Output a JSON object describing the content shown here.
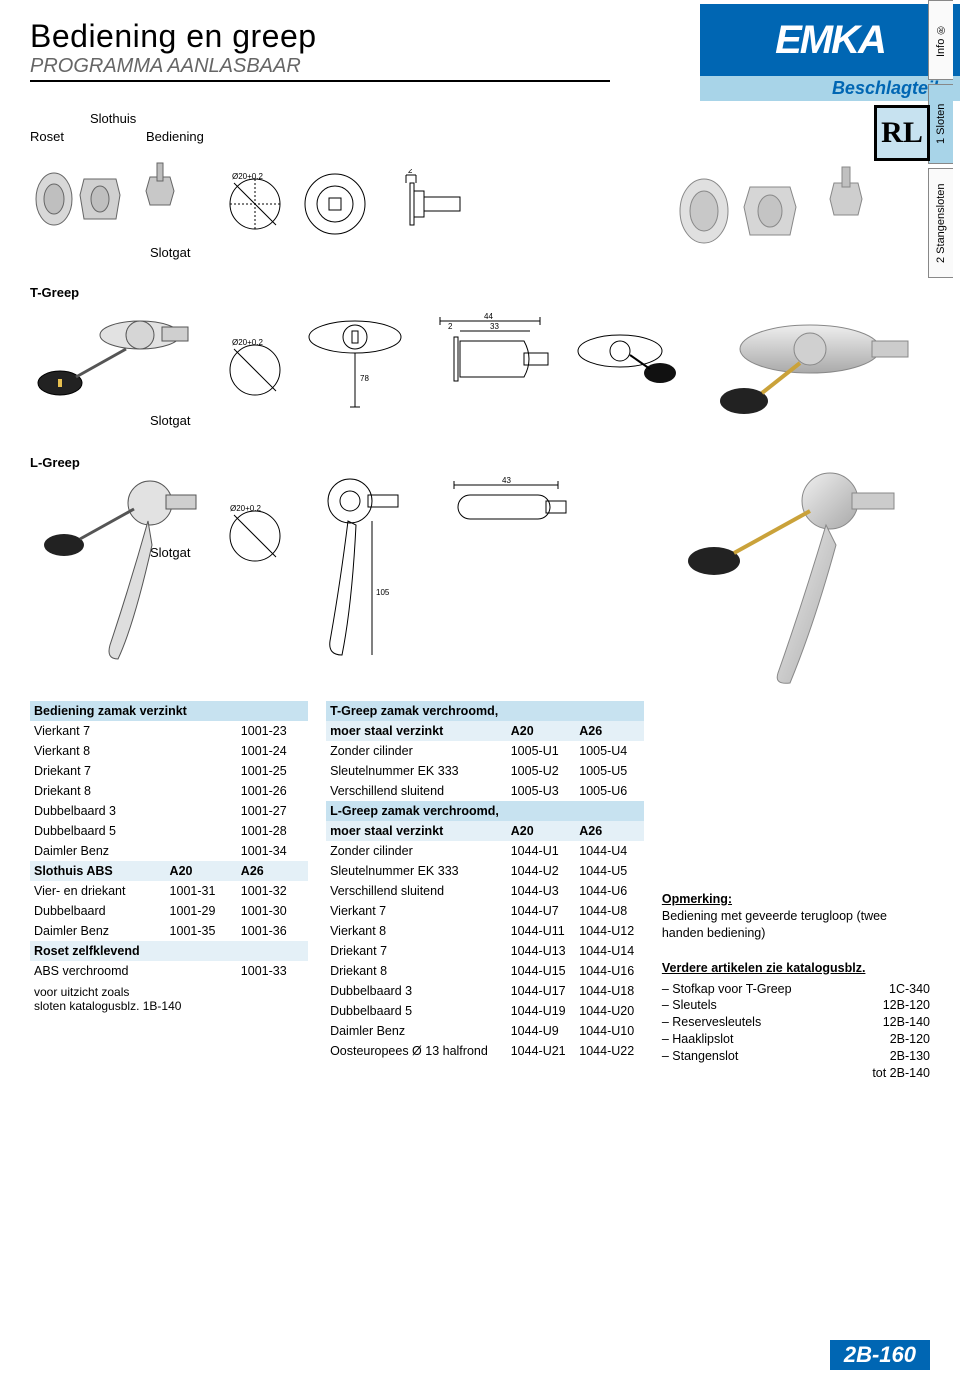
{
  "colors": {
    "brand_blue": "#0066b3",
    "light_blue": "#a8d4e8",
    "pale_blue": "#c7e2f0",
    "paler_blue": "#e4f0f7",
    "text": "#000000",
    "text_muted": "#666666",
    "background": "#ffffff"
  },
  "header": {
    "title": "Bediening en greep",
    "subtitle": "PROGRAMMA AANLASBAAR",
    "logo": "EMKA",
    "logo_tagline": "Beschlagteile",
    "registered": "®"
  },
  "side_tabs": {
    "info": "Info",
    "t1": "1  Sloten",
    "t2": "2  Stangensloten"
  },
  "rl_badge": "RL",
  "diagram_labels": {
    "roset": "Roset",
    "slothuis": "Slothuis",
    "bediening": "Bediening",
    "slotgat1": "Slotgat",
    "tgreep": "T-Greep",
    "slotgat2": "Slotgat",
    "lgreep": "L-Greep",
    "slotgat3": "Slotgat"
  },
  "table1": {
    "header": "Bediening zamak verzinkt",
    "rows": [
      [
        "Vierkant 7",
        "1001-23"
      ],
      [
        "Vierkant 8",
        "1001-24"
      ],
      [
        "Driekant 7",
        "1001-25"
      ],
      [
        "Driekant 8",
        "1001-26"
      ],
      [
        "Dubbelbaard 3",
        "1001-27"
      ],
      [
        "Dubbelbaard 5",
        "1001-28"
      ],
      [
        "Daimler Benz",
        "1001-34"
      ]
    ],
    "sub_header": [
      "Slothuis ABS",
      "A20",
      "A26"
    ],
    "rows2": [
      [
        "Vier- en driekant",
        "1001-31",
        "1001-32"
      ],
      [
        "Dubbelbaard",
        "1001-29",
        "1001-30"
      ],
      [
        "Daimler Benz",
        "1001-35",
        "1001-36"
      ]
    ],
    "sub_header2": "Roset zelfklevend",
    "rows3": [
      [
        "ABS verchroomd",
        "",
        "1001-33"
      ]
    ],
    "footnote": "voor uitzicht zoals\nsloten katalogusblz. 1B-140"
  },
  "table2": {
    "header1": "T-Greep zamak verchroomd,",
    "sub1": [
      "moer staal verzinkt",
      "A20",
      "A26"
    ],
    "rows1": [
      [
        "Zonder cilinder",
        "1005-U1",
        "1005-U4"
      ],
      [
        "Sleutelnummer EK 333",
        "1005-U2",
        "1005-U5"
      ],
      [
        "Verschillend sluitend",
        "1005-U3",
        "1005-U6"
      ]
    ],
    "header2": "L-Greep zamak verchroomd,",
    "sub2": [
      "moer staal verzinkt",
      "A20",
      "A26"
    ],
    "rows2": [
      [
        "Zonder cilinder",
        "1044-U1",
        "1044-U4"
      ],
      [
        "Sleutelnummer EK 333",
        "1044-U2",
        "1044-U5"
      ],
      [
        "Verschillend sluitend",
        "1044-U3",
        "1044-U6"
      ],
      [
        "Vierkant 7",
        "1044-U7",
        "1044-U8"
      ],
      [
        "Vierkant 8",
        "1044-U11",
        "1044-U12"
      ],
      [
        "Driekant 7",
        "1044-U13",
        "1044-U14"
      ],
      [
        "Driekant 8",
        "1044-U15",
        "1044-U16"
      ],
      [
        "Dubbelbaard 3",
        "1044-U17",
        "1044-U18"
      ],
      [
        "Dubbelbaard 5",
        "1044-U19",
        "1044-U20"
      ],
      [
        "Daimler Benz",
        "1044-U9",
        "1044-U10"
      ],
      [
        "Oosteuropees Ø 13 halfrond",
        "1044-U21",
        "1044-U22"
      ]
    ]
  },
  "notes": {
    "opm_head": "Opmerking:",
    "opm_text": "Bediening met geveerde terugloop (twee handen bediening)",
    "list_head": "Verdere artikelen zie katalogusblz.",
    "items": [
      [
        "– Stofkap voor T-Greep",
        "1C-340"
      ],
      [
        "– Sleutels",
        "12B-120"
      ],
      [
        "– Reservesleutels",
        "12B-140"
      ],
      [
        "– Haaklipslot",
        "2B-120"
      ],
      [
        "– Stangenslot",
        "2B-130"
      ],
      [
        "",
        "tot   2B-140"
      ]
    ]
  },
  "footer": "2B-160"
}
